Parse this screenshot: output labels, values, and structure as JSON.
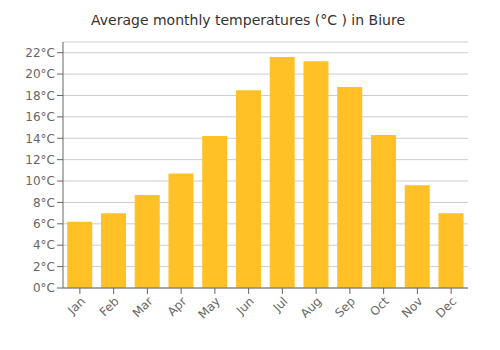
{
  "chart_data": {
    "type": "bar",
    "title": "Average monthly temperatures (°C ) in Biure",
    "categories": [
      "Jan",
      "Feb",
      "Mar",
      "Apr",
      "May",
      "Jun",
      "Jul",
      "Aug",
      "Sep",
      "Oct",
      "Nov",
      "Dec"
    ],
    "values": [
      6.2,
      7.0,
      8.7,
      10.7,
      14.2,
      18.5,
      21.6,
      21.2,
      18.8,
      14.3,
      9.6,
      7.0
    ],
    "color": "#FFC125",
    "ylim": [
      0,
      23
    ],
    "yticks": [
      {
        "value": 0,
        "label": "0°C"
      },
      {
        "value": 2,
        "label": "2°C"
      },
      {
        "value": 4,
        "label": "4°C"
      },
      {
        "value": 6,
        "label": "6°C"
      },
      {
        "value": 8,
        "label": "8°C"
      },
      {
        "value": 10,
        "label": "10°C"
      },
      {
        "value": 12,
        "label": "12°C"
      },
      {
        "value": 14,
        "label": "14°C"
      },
      {
        "value": 16,
        "label": "16°C"
      },
      {
        "value": 18,
        "label": "18°C"
      },
      {
        "value": 20,
        "label": "20°C"
      },
      {
        "value": 22,
        "label": "22°C"
      }
    ],
    "grid": true
  }
}
